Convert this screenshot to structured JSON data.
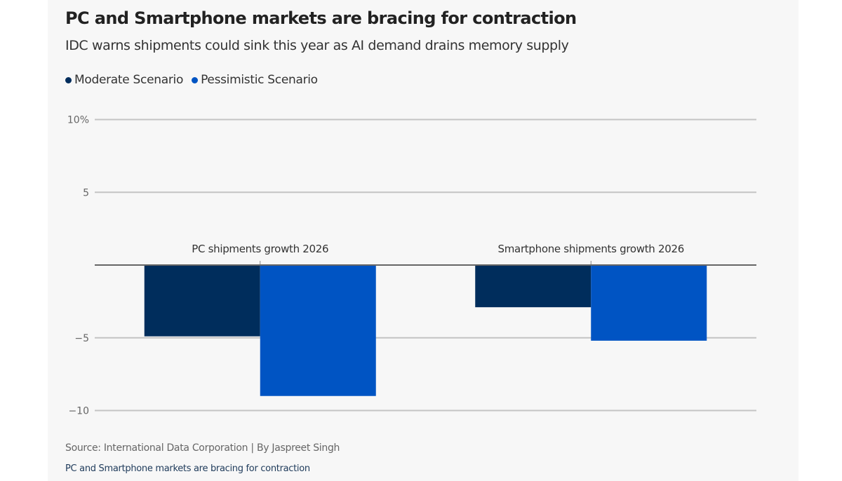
{
  "chart_data": {
    "type": "bar",
    "title": "PC and Smartphone markets are bracing for contraction",
    "subtitle": "IDC warns shipments could sink this year as AI demand drains memory supply",
    "categories": [
      "PC shipments growth 2026",
      "Smartphone shipments growth 2026"
    ],
    "series": [
      {
        "name": "Moderate Scenario",
        "color": "#002d5c",
        "values": [
          -4.9,
          -2.9
        ]
      },
      {
        "name": "Pessimistic Scenario",
        "color": "#0054c3",
        "values": [
          -9.0,
          -5.2
        ]
      }
    ],
    "ylim": [
      -10,
      10
    ],
    "yticks": [
      10,
      5,
      -5,
      -10
    ],
    "ytick_labels": [
      "10%",
      "5",
      "−5",
      "−10"
    ],
    "grid": true,
    "legend_position": "top-left",
    "source": "Source: International Data Corporation | By Jaspreet Singh",
    "footer": "PC and Smartphone markets are bracing for contraction"
  }
}
